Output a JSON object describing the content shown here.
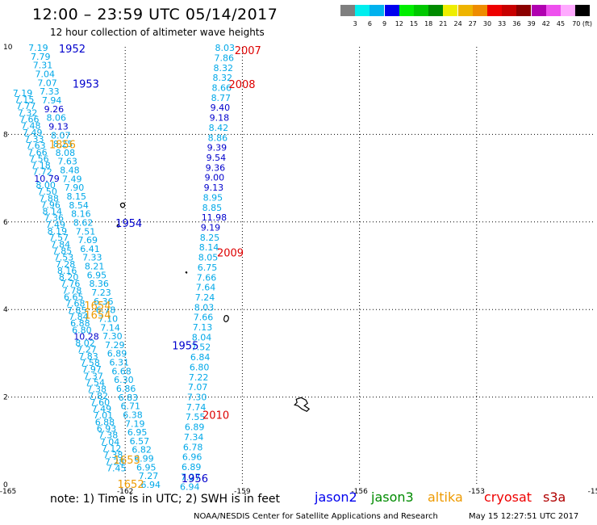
{
  "header": {
    "title": "12:00 – 23:59 UTC 05/14/2017",
    "subtitle": "12 hour collection of altimeter wave heights"
  },
  "colorbar": {
    "colors": [
      "#7f7f7f",
      "#00eeee",
      "#00b2ee",
      "#0000ee",
      "#00ee00",
      "#00c800",
      "#008b00",
      "#eeee00",
      "#eeb400",
      "#ee8c00",
      "#ee0000",
      "#c80000",
      "#8b0000",
      "#b000b0",
      "#ee50ee",
      "#ffaaff",
      "#000000"
    ],
    "labels": [
      "3",
      "6",
      "9",
      "12",
      "15",
      "18",
      "21",
      "24",
      "27",
      "30",
      "33",
      "36",
      "39",
      "42",
      "45",
      "70 (ft)"
    ]
  },
  "map": {
    "x_ticks": [
      "-165",
      "-162",
      "-159",
      "-156",
      "-153",
      "-15"
    ],
    "y_ticks": [
      "0",
      "2",
      "4",
      "6",
      "8",
      "10"
    ],
    "xlim": [
      -165,
      -150
    ],
    "ylim": [
      0,
      10
    ],
    "colors": {
      "grid": "#000000",
      "coast": "#000000"
    }
  },
  "tracks": [
    {
      "id": "L1",
      "x0": -164.48,
      "y0": 9.98,
      "x1": -161.6,
      "y1": 0.0,
      "values": [
        "7.19",
        "7.79",
        "7.31",
        "7.04",
        "7.07",
        "7.33",
        "7.94",
        "9.26",
        "8.06",
        "9.13",
        "8.07",
        "8.25",
        "8.08",
        "7.63",
        "8.48",
        "7.49",
        "7.90",
        "8.15",
        "8.54",
        "8.16",
        "8.62",
        "7.51",
        "7.69",
        "6.41",
        "7.33",
        "8.21",
        "6.95",
        "8.36",
        "7.23",
        "6.36",
        "6.78",
        "7.10",
        "7.14",
        "7.30",
        "7.29",
        "6.89",
        "6.31",
        "6.68",
        "6.30",
        "6.86",
        "6.83",
        "6.71",
        "6.38",
        "7.19",
        "6.95",
        "6.57",
        "6.82",
        "6.99",
        "6.95",
        "7.27",
        "6.94"
      ]
    },
    {
      "id": "L2",
      "x0": -164.88,
      "y0": 8.95,
      "x1": -162.48,
      "y1": 0.38,
      "values": [
        "7.19",
        "7.15",
        "7.77",
        "7.32",
        "7.66",
        "7.48",
        "7.49",
        "7.33",
        "7.63",
        "7.66",
        "7.56",
        "7.18",
        "7.72",
        "10.79",
        "8.00",
        "7.50",
        "7.88",
        "7.96",
        "8.14",
        "7.36",
        "7.49",
        "8.19",
        "7.57",
        "7.84",
        "7.85",
        "7.53",
        "7.28",
        "8.16",
        "8.20",
        "7.76",
        "7.78",
        "6.65",
        "7.68",
        "7.85",
        "7.84",
        "6.88",
        "6.80",
        "10.28",
        "8.02",
        "7.27",
        "7.83",
        "7.58",
        "7.97",
        "7.37",
        "7.54",
        "7.38",
        "7.82",
        "7.60",
        "7.49",
        "7.01",
        "6.88",
        "6.93",
        "7.38",
        "7.04",
        "7.12",
        "7.38",
        "7.28",
        "7.45"
      ]
    },
    {
      "id": "R1",
      "x0": -159.7,
      "y0": 9.98,
      "x1": -160.6,
      "y1": -0.05,
      "values": [
        "8.03",
        "7.86",
        "8.32",
        "8.32",
        "8.66",
        "8.77",
        "9.40",
        "9.18",
        "8.42",
        "8.86",
        "9.39",
        "9.54",
        "9.36",
        "9.00",
        "9.13",
        "8.95",
        "8.85",
        "11.98",
        "9.19",
        "8.25",
        "8.14",
        "8.05",
        "6.75",
        "7.66",
        "7.64",
        "7.24",
        "8.03",
        "7.66",
        "7.13",
        "8.04",
        "7.52",
        "6.84",
        "6.80",
        "7.22",
        "7.07",
        "7.30",
        "7.74",
        "7.55",
        "6.89",
        "7.34",
        "6.78",
        "6.96",
        "6.89",
        "7.27",
        "6.94"
      ]
    }
  ],
  "time_labels": [
    {
      "text": "2007",
      "x": -159.2,
      "y": 9.93,
      "color": "red"
    },
    {
      "text": "1952",
      "x": -163.7,
      "y": 9.96,
      "color": "blue"
    },
    {
      "text": "1953",
      "x": -163.35,
      "y": 9.16,
      "color": "blue"
    },
    {
      "text": "2008",
      "x": -159.35,
      "y": 9.15,
      "color": "red"
    },
    {
      "text": "1856",
      "x": -163.95,
      "y": 7.78,
      "color": "orange"
    },
    {
      "text": "1954",
      "x": -162.25,
      "y": 5.98,
      "color": "blue"
    },
    {
      "text": "2009",
      "x": -159.65,
      "y": 5.3,
      "color": "red"
    },
    {
      "text": "1654",
      "x": -163.05,
      "y": 4.1,
      "color": "orange"
    },
    {
      "text": "1654",
      "x": -163.05,
      "y": 3.88,
      "color": "orange"
    },
    {
      "text": "1955",
      "x": -160.8,
      "y": 3.18,
      "color": "blue"
    },
    {
      "text": "2010",
      "x": -160.02,
      "y": 1.6,
      "color": "red"
    },
    {
      "text": "1653",
      "x": -162.3,
      "y": 0.57,
      "color": "orange"
    },
    {
      "text": "1652",
      "x": -162.2,
      "y": 0.02,
      "color": "orange"
    },
    {
      "text": "1956",
      "x": -160.56,
      "y": 0.15,
      "color": "blue"
    }
  ],
  "footer": {
    "note": "note: 1) Time is in UTC; 2) SWH is in feet",
    "legend": [
      {
        "label": "jason2",
        "color": "#0000ee"
      },
      {
        "label": "jason3",
        "color": "#008b00"
      },
      {
        "label": "altika",
        "color": "#ee9a00"
      },
      {
        "label": "cryosat",
        "color": "#ee0000"
      },
      {
        "label": "s3a",
        "color": "#b00000"
      }
    ],
    "credit": "NOAA/NESDIS Center for Satellite Applications and Research",
    "timestamp": "May 15 12:27:51 UTC 2017"
  }
}
